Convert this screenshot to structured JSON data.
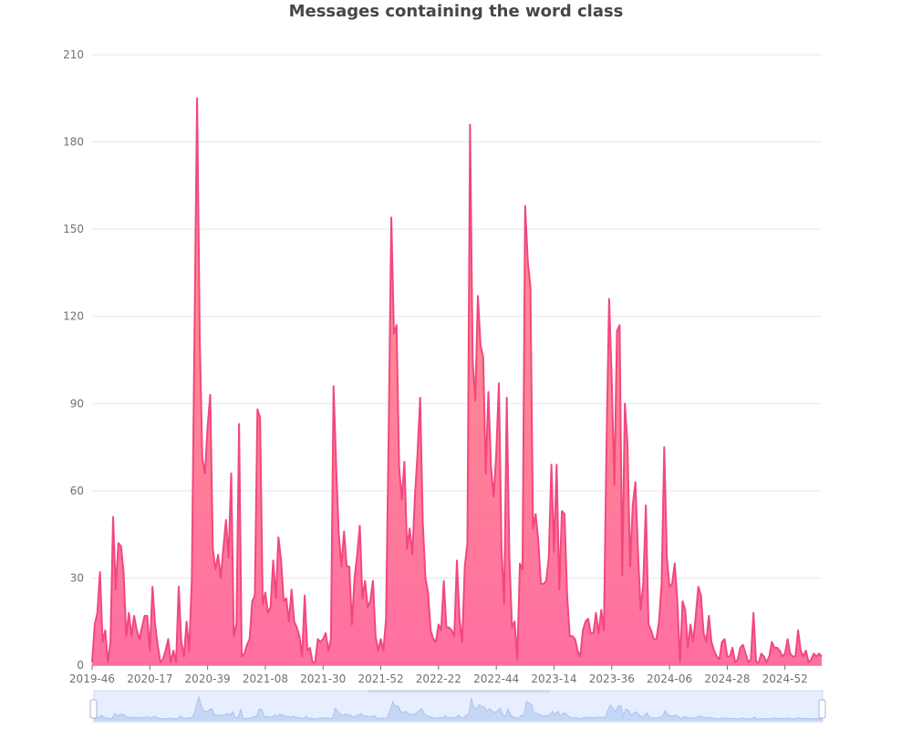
{
  "chart_data": {
    "type": "area",
    "title": "Messages containing the word class",
    "xlabel": "",
    "ylabel": "",
    "ylim": [
      0,
      210
    ],
    "y_ticks": [
      0,
      30,
      60,
      90,
      120,
      150,
      180,
      210
    ],
    "x_tick_labels": [
      "2019-46",
      "2020-17",
      "2020-39",
      "2021-08",
      "2021-30",
      "2021-52",
      "2022-22",
      "2022-44",
      "2023-14",
      "2023-36",
      "2024-06",
      "2024-28",
      "2024-52"
    ],
    "grid": true,
    "data_zoom": {
      "start": 0,
      "end": 100
    },
    "colors": {
      "line": "#f2477f",
      "area_top": "#ff9a85",
      "area_bottom": "#ff6fa2",
      "slider_fill": "#e6eeff",
      "slider_border": "#c9d8f7",
      "slider_line": "#a9c3f0"
    },
    "series": [
      {
        "x_start": "2019-46",
        "values": [
          1,
          14,
          18,
          32,
          8,
          12,
          1,
          8,
          51,
          26,
          42,
          41,
          32,
          10,
          18,
          10,
          17,
          12,
          9,
          13,
          17,
          17,
          5,
          27,
          14,
          7,
          1,
          2,
          5,
          9,
          1,
          5,
          1,
          27,
          8,
          3,
          15,
          5,
          30,
          113,
          195,
          113,
          71,
          66,
          82,
          93,
          40,
          33,
          38,
          30,
          40,
          50,
          37,
          66,
          10,
          14,
          83,
          3,
          4,
          7,
          9,
          22,
          24,
          88,
          85,
          21,
          25,
          18,
          20,
          36,
          23,
          44,
          36,
          22,
          23,
          15,
          26,
          15,
          13,
          10,
          3,
          24,
          5,
          6,
          1,
          1,
          9,
          8,
          9,
          11,
          5,
          9,
          96,
          68,
          45,
          34,
          46,
          34,
          34,
          14,
          30,
          38,
          48,
          23,
          29,
          20,
          22,
          29,
          10,
          5,
          9,
          5,
          16,
          80,
          154,
          114,
          117,
          68,
          57,
          70,
          40,
          47,
          38,
          58,
          73,
          92,
          49,
          30,
          25,
          12,
          9,
          8,
          14,
          12,
          29,
          13,
          13,
          12,
          10,
          36,
          16,
          8,
          34,
          42,
          186,
          105,
          91,
          127,
          110,
          106,
          66,
          94,
          68,
          58,
          73,
          97,
          40,
          21,
          92,
          37,
          13,
          15,
          2,
          35,
          33,
          158,
          139,
          130,
          47,
          52,
          43,
          28,
          28,
          29,
          37,
          69,
          39,
          69,
          26,
          53,
          52,
          24,
          10,
          10,
          9,
          5,
          3,
          12,
          15,
          16,
          11,
          11,
          18,
          11,
          19,
          12,
          76,
          126,
          98,
          62,
          115,
          117,
          31,
          90,
          76,
          34,
          55,
          63,
          39,
          19,
          28,
          55,
          14,
          12,
          9,
          9,
          15,
          28,
          75,
          37,
          27,
          28,
          35,
          22,
          1,
          22,
          19,
          6,
          14,
          8,
          17,
          27,
          24,
          11,
          8,
          17,
          8,
          5,
          3,
          2,
          8,
          9,
          3,
          3,
          6,
          1,
          2,
          6,
          7,
          4,
          1,
          2,
          18,
          1,
          1,
          4,
          3,
          1,
          3,
          8,
          6,
          6,
          5,
          3,
          4,
          9,
          4,
          3,
          3,
          12,
          5,
          3,
          5,
          1,
          2,
          4,
          3,
          4,
          3
        ]
      }
    ]
  }
}
